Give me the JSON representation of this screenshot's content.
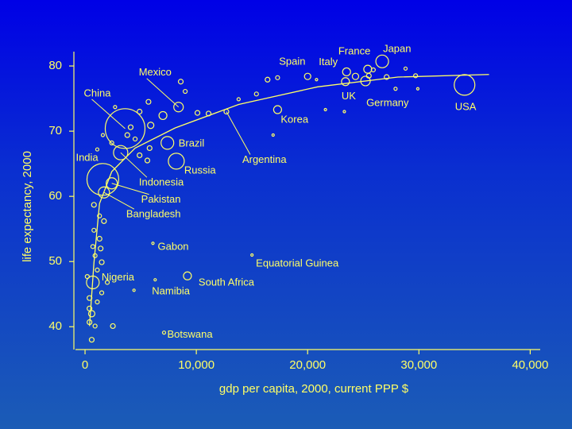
{
  "chart_data": {
    "type": "scatter",
    "xlabel": "gdp per capita, 2000, current PPP $",
    "ylabel": "life expectancy, 2000",
    "xlim": [
      -860,
      40900
    ],
    "ylim": [
      36.5,
      82.2
    ],
    "xticks": [
      0,
      {
        "value": 10000,
        "label": "10,000"
      },
      {
        "value": 20000,
        "label": "20,000"
      },
      {
        "value": 30000,
        "label": "30,000"
      },
      {
        "value": 40000,
        "label": "40,000"
      }
    ],
    "yticks": [
      40,
      50,
      60,
      70,
      80
    ],
    "color": "#ffff66",
    "series": [
      {
        "x": [
          34100,
          26700,
          25400,
          23500,
          20000,
          23400,
          25200,
          17300,
          12700,
          8400,
          3600,
          7400,
          8200,
          1600,
          3200,
          2400,
          1700,
          6100,
          15000,
          700,
          6300,
          9200,
          7100,
          16400,
          17300,
          20800,
          21600,
          23300,
          24300,
          25500,
          25900,
          27100,
          27900,
          28800,
          29900,
          29700,
          13800,
          15400,
          11100,
          10100,
          9000,
          8600,
          16900,
          5700,
          4900,
          7000,
          5900,
          5800,
          4500,
          2700,
          2400,
          1600,
          3800,
          4900,
          5600,
          1100,
          4100,
          800,
          1300,
          1700,
          800,
          1300,
          700,
          1400,
          900,
          1500,
          1100,
          400,
          600,
          400,
          900,
          2500,
          600,
          1100,
          2000,
          1500,
          200,
          400,
          4400
        ],
        "values": [
          77.1,
          80.7,
          79.5,
          79.1,
          78.4,
          77.6,
          77.7,
          73.3,
          73,
          73.7,
          70.4,
          68.2,
          65.4,
          62.6,
          66.7,
          62,
          60.6,
          52.8,
          51,
          46.8,
          47.2,
          47.8,
          39.1,
          77.9,
          78.2,
          77.9,
          73.3,
          73,
          78.4,
          78.5,
          79.4,
          78.3,
          76.5,
          79.6,
          76.5,
          78.5,
          74.9,
          75.7,
          72.7,
          72.8,
          76.1,
          77.6,
          69.4,
          74.5,
          73,
          72.4,
          70.9,
          67.4,
          68.8,
          73.7,
          68.2,
          69.4,
          69.4,
          66.3,
          65.5,
          67.2,
          70.6,
          58.7,
          57,
          56.2,
          54.8,
          53.5,
          52.3,
          52,
          50.9,
          49.9,
          48.7,
          44.4,
          42,
          40.7,
          40.1,
          40.1,
          38,
          43.8,
          46.8,
          45.2,
          47.7,
          42.8,
          45.6
        ],
        "sizes": [
          13,
          8,
          5,
          5,
          4,
          5,
          6,
          5,
          3,
          6,
          25,
          8,
          10,
          20,
          9,
          7,
          7,
          1.5,
          1.5,
          8,
          1.5,
          5,
          2,
          3,
          2.5,
          1.5,
          1.5,
          1.5,
          4,
          3,
          2.5,
          3,
          2,
          2,
          1.5,
          2.5,
          2,
          2.5,
          3,
          3,
          2.5,
          3,
          1.5,
          3,
          3,
          5,
          4,
          3,
          2.5,
          2,
          2.5,
          2,
          3,
          3,
          3,
          2,
          3,
          3,
          2.5,
          3,
          2.5,
          3,
          2.5,
          3,
          2.5,
          3,
          2.5,
          3,
          4,
          3,
          2.5,
          3,
          3,
          2.5,
          2.5,
          2.5,
          2.5,
          3,
          1.5
        ],
        "labels": [
          "USA",
          "Japan",
          "France",
          "Italy",
          "Spain",
          "UK",
          "Germany",
          "Korea",
          "Argentina",
          "Mexico",
          "China",
          "Brazil",
          "Russia",
          "India",
          "Indonesia",
          "Pakistan",
          "Bangladesh",
          "Gabon",
          "Equatorial Guinea",
          "Nigeria",
          "Namibia",
          "South Africa",
          "Botswana",
          null,
          null,
          null,
          null,
          null,
          null,
          null,
          null,
          null,
          null,
          null,
          null,
          null,
          null,
          null,
          null,
          null,
          null,
          null,
          null,
          null,
          null,
          null,
          null,
          null,
          null,
          null,
          null,
          null,
          null,
          null,
          null,
          null,
          null,
          null,
          null,
          null,
          null,
          null,
          null,
          null,
          null,
          null,
          null,
          null,
          null,
          null,
          null,
          null,
          null,
          null,
          null,
          null,
          null,
          null,
          null
        ]
      }
    ],
    "trend": {
      "x": [
        400,
        800,
        1300,
        2400,
        4500,
        8100,
        13800,
        20900,
        28100,
        36300
      ],
      "values": [
        40.1,
        49.8,
        58.9,
        63.8,
        67.4,
        70.5,
        74.1,
        76.8,
        78.3,
        78.7
      ]
    }
  }
}
